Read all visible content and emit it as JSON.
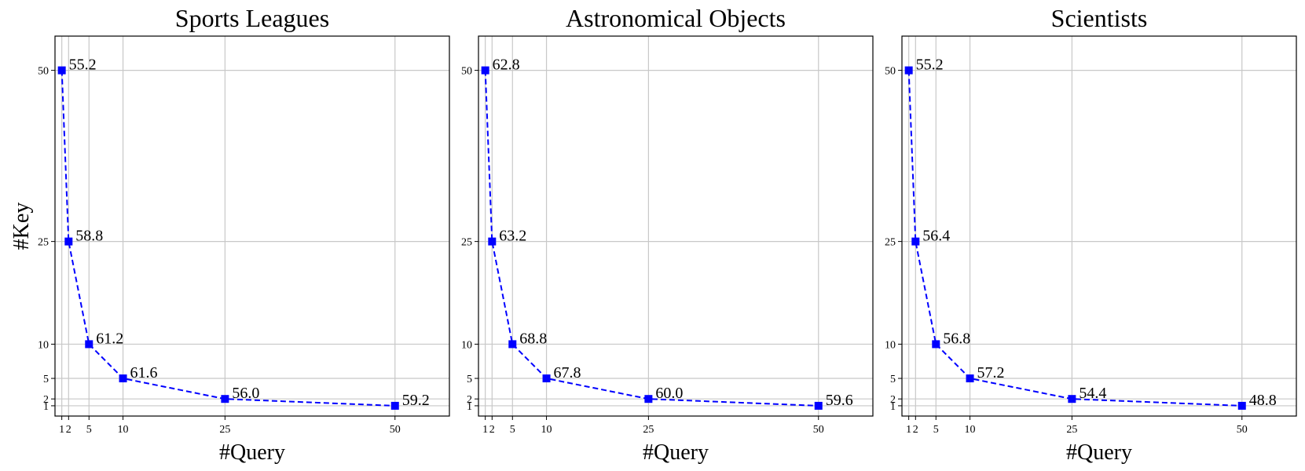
{
  "chart_data": [
    {
      "type": "line",
      "title": "Sports Leagues",
      "xlabel": "#Query",
      "ylabel": "#Key",
      "x_ticks": [
        1,
        2,
        5,
        10,
        25,
        50
      ],
      "y_ticks": [
        1,
        2,
        5,
        10,
        25,
        50
      ],
      "xlim": [
        0,
        58
      ],
      "ylim": [
        -0.5,
        55
      ],
      "grid": true,
      "series": [
        {
          "color": "#0000ff",
          "marker": "square",
          "line_style": "dashed",
          "points": [
            {
              "query": 1,
              "key": 50,
              "label": "55.2"
            },
            {
              "query": 2,
              "key": 25,
              "label": "58.8"
            },
            {
              "query": 5,
              "key": 10,
              "label": "61.2"
            },
            {
              "query": 10,
              "key": 5,
              "label": "61.6"
            },
            {
              "query": 25,
              "key": 2,
              "label": "56.0"
            },
            {
              "query": 50,
              "key": 1,
              "label": "59.2"
            }
          ]
        }
      ]
    },
    {
      "type": "line",
      "title": "Astronomical Objects",
      "xlabel": "#Query",
      "ylabel": "",
      "x_ticks": [
        1,
        2,
        5,
        10,
        25,
        50
      ],
      "y_ticks": [
        1,
        2,
        5,
        10,
        25,
        50
      ],
      "xlim": [
        0,
        58
      ],
      "ylim": [
        -0.5,
        55
      ],
      "grid": true,
      "series": [
        {
          "color": "#0000ff",
          "marker": "square",
          "line_style": "dashed",
          "points": [
            {
              "query": 1,
              "key": 50,
              "label": "62.8"
            },
            {
              "query": 2,
              "key": 25,
              "label": "63.2"
            },
            {
              "query": 5,
              "key": 10,
              "label": "68.8"
            },
            {
              "query": 10,
              "key": 5,
              "label": "67.8"
            },
            {
              "query": 25,
              "key": 2,
              "label": "60.0"
            },
            {
              "query": 50,
              "key": 1,
              "label": "59.6"
            }
          ]
        }
      ]
    },
    {
      "type": "line",
      "title": "Scientists",
      "xlabel": "#Query",
      "ylabel": "",
      "x_ticks": [
        1,
        2,
        5,
        10,
        25,
        50
      ],
      "y_ticks": [
        1,
        2,
        5,
        10,
        25,
        50
      ],
      "xlim": [
        0,
        58
      ],
      "ylim": [
        -0.5,
        55
      ],
      "grid": true,
      "series": [
        {
          "color": "#0000ff",
          "marker": "square",
          "line_style": "dashed",
          "points": [
            {
              "query": 1,
              "key": 50,
              "label": "55.2"
            },
            {
              "query": 2,
              "key": 25,
              "label": "56.4"
            },
            {
              "query": 5,
              "key": 10,
              "label": "56.8"
            },
            {
              "query": 10,
              "key": 5,
              "label": "57.2"
            },
            {
              "query": 25,
              "key": 2,
              "label": "54.4"
            },
            {
              "query": 50,
              "key": 1,
              "label": "48.8"
            }
          ]
        }
      ]
    }
  ]
}
